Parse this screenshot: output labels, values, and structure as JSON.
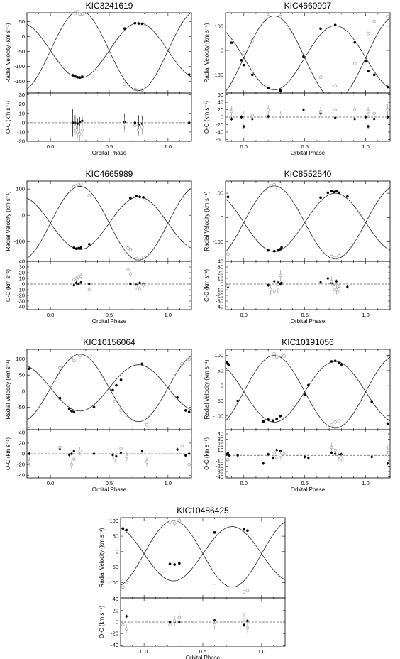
{
  "chart_data": [
    {
      "type": "scatter",
      "title": "KIC3241619",
      "xlabel": "Orbital Phase",
      "ylabel": "Radial Velocity (km s⁻¹)",
      "oc_ylabel": "O-C (km s⁻¹)",
      "xlim": [
        -0.2,
        1.2
      ],
      "xticks": [
        0.0,
        0.5,
        1.0
      ],
      "xtick_labels": [
        "0.0",
        "0.5",
        "1.0"
      ],
      "ylim": [
        -190,
        80
      ],
      "yticks": [
        -150,
        -100,
        -50,
        0,
        50
      ],
      "ytick_labels": [
        "-150",
        "-100",
        "-50",
        "0",
        "50"
      ],
      "oc_ylim": [
        -20,
        32
      ],
      "oc_yticks": [
        -20,
        -10,
        0,
        10,
        20,
        30
      ],
      "oc_ytick_labels": [
        "-20",
        "-10",
        "0",
        "10",
        "20",
        "30"
      ],
      "model": {
        "gamma": -47,
        "K1": 93,
        "K2": 135,
        "phase_offset": 0.0
      },
      "series": [
        {
          "x": [
            0.19,
            0.21,
            0.23,
            0.25,
            0.27,
            0.63,
            0.72,
            0.75,
            0.78,
            1.18
          ],
          "y": [
            -130,
            -133,
            -137,
            -138,
            -135,
            27,
            45,
            44,
            43,
            -128
          ],
          "oc": [
            0,
            0,
            -1,
            1,
            2,
            1,
            0,
            -2,
            -1,
            0
          ],
          "err": [
            15,
            8,
            6,
            5,
            5,
            8,
            7,
            10,
            8,
            15
          ]
        },
        {
          "x": [
            0.21,
            0.23,
            0.25,
            0.27,
            0.63,
            0.72,
            0.75,
            0.78
          ],
          "y": [
            78,
            84,
            76,
            76,
            -160,
            -178,
            -182,
            -180
          ],
          "oc": [
            -5,
            -10,
            -12,
            -8,
            -2,
            -3,
            -8,
            -5
          ],
          "err": [
            8,
            7,
            8,
            6,
            8,
            7,
            6,
            8
          ]
        }
      ]
    },
    {
      "type": "scatter",
      "title": "KIC4660997",
      "xlabel": "Orbital Phase",
      "ylabel": "Radial Velocity (km s⁻¹)",
      "oc_ylabel": "O-C (km s⁻¹)",
      "xlim": [
        -0.15,
        1.2
      ],
      "xticks": [
        0.0,
        0.5,
        1.0
      ],
      "xtick_labels": [
        "0.0",
        "0.5",
        "1.0"
      ],
      "ylim": [
        -175,
        155
      ],
      "yticks": [
        -100,
        0,
        100
      ],
      "ytick_labels": [
        "-100",
        "0",
        "100"
      ],
      "oc_ylim": [
        -65,
        65
      ],
      "oc_yticks": [
        -60,
        -40,
        -20,
        0,
        20,
        40,
        60
      ],
      "oc_ytick_labels": [
        "-60",
        "-40",
        "-20",
        "0",
        "20",
        "40",
        "60"
      ],
      "model": {
        "gamma": -30,
        "K1": 132,
        "K2": 172,
        "phase_offset": 0.0
      },
      "series": [
        {
          "x": [
            -0.1,
            -0.02,
            0.0,
            0.07,
            0.2,
            0.3,
            0.49,
            0.63,
            0.75,
            0.91,
            1.0,
            1.02,
            1.07,
            1.18
          ],
          "y": [
            32,
            -40,
            -60,
            -100,
            -155,
            -165,
            -25,
            90,
            105,
            33,
            -45,
            -85,
            -100,
            -150
          ],
          "oc": [
            -5,
            0,
            -25,
            -5,
            2,
            5,
            20,
            10,
            -2,
            -5,
            0,
            -25,
            -5,
            0
          ],
          "err": [
            5,
            5,
            5,
            5,
            5,
            5,
            4,
            5,
            5,
            5,
            5,
            5,
            5,
            5
          ]
        },
        {
          "x": [
            -0.1,
            0.0,
            0.07,
            0.2,
            0.3,
            0.63,
            0.75,
            0.91,
            1.02,
            1.07,
            1.18
          ],
          "y": [
            -115,
            -10,
            40,
            140,
            140,
            -110,
            -145,
            -55,
            70,
            120,
            140
          ],
          "oc": [
            15,
            5,
            5,
            20,
            5,
            15,
            20,
            20,
            15,
            10,
            20
          ],
          "err": [
            15,
            10,
            10,
            12,
            10,
            12,
            15,
            15,
            12,
            15,
            15
          ]
        }
      ]
    },
    {
      "type": "scatter",
      "title": "KIC4665989",
      "xlabel": "Orbital Phase",
      "ylabel": "Radial Velocity (km s⁻¹)",
      "oc_ylabel": "O-C (km s⁻¹)",
      "xlim": [
        -0.2,
        1.2
      ],
      "xticks": [
        0.0,
        0.5,
        1.0
      ],
      "xtick_labels": [
        "0.0",
        "0.5",
        "1.0"
      ],
      "ylim": [
        -175,
        130
      ],
      "yticks": [
        -100,
        0,
        100
      ],
      "ytick_labels": [
        "-100",
        "0",
        "100"
      ],
      "oc_ylim": [
        -45,
        40
      ],
      "oc_yticks": [
        -40,
        -30,
        -20,
        -10,
        0,
        10,
        20,
        30,
        40
      ],
      "oc_ytick_labels": [
        "-40",
        "-30",
        "-20",
        "-10",
        "0",
        "10",
        "20",
        "30",
        "40"
      ],
      "model": {
        "gamma": -30,
        "K1": 100,
        "K2": 140,
        "phase_offset": 0.0
      },
      "series": [
        {
          "x": [
            0.2,
            0.22,
            0.24,
            0.26,
            0.33,
            0.68,
            0.73,
            0.76,
            0.79
          ],
          "y": [
            -123,
            -127,
            -125,
            -123,
            -110,
            65,
            73,
            70,
            68
          ],
          "oc": [
            -2,
            2,
            0,
            3,
            0,
            0,
            -1,
            2,
            0
          ],
          "err": [
            3,
            3,
            3,
            3,
            3,
            3,
            3,
            3,
            3
          ]
        },
        {
          "x": [
            0.2,
            0.22,
            0.24,
            0.26,
            0.33,
            0.66,
            0.68,
            0.73,
            0.76,
            0.79
          ],
          "y": [
            108,
            112,
            118,
            118,
            75,
            -125,
            -130,
            -165,
            -168,
            -160
          ],
          "oc": [
            8,
            10,
            12,
            14,
            -10,
            25,
            18,
            -5,
            -8,
            -2
          ],
          "err": [
            5,
            5,
            5,
            5,
            6,
            6,
            6,
            6,
            6,
            6
          ]
        }
      ]
    },
    {
      "type": "scatter",
      "title": "KIC8552540",
      "xlabel": "Orbital Phase",
      "ylabel": "Radial Velocity (km s⁻¹)",
      "oc_ylabel": "O-C (km s⁻¹)",
      "xlim": [
        -0.15,
        1.2
      ],
      "xticks": [
        0.0,
        0.5,
        1.0
      ],
      "xtick_labels": [
        "0.0",
        "0.5",
        "1.0"
      ],
      "ylim": [
        -180,
        150
      ],
      "yticks": [
        -100,
        0,
        100
      ],
      "ytick_labels": [
        "-100",
        "0",
        "100"
      ],
      "oc_ylim": [
        -45,
        40
      ],
      "oc_yticks": [
        -40,
        -30,
        -20,
        -10,
        0,
        10,
        20,
        30,
        40
      ],
      "oc_ytick_labels": [
        "-40",
        "-30",
        "-20",
        "-10",
        "0",
        "10",
        "20",
        "30",
        "40"
      ],
      "model": {
        "gamma": -20,
        "K1": 120,
        "K2": 150,
        "phase_offset": 0.0
      },
      "series": [
        {
          "x": [
            -0.13,
            0.2,
            0.25,
            0.28,
            0.3,
            0.31,
            0.63,
            0.69,
            0.72,
            0.74,
            0.76,
            0.78,
            0.85
          ],
          "y": [
            85,
            -135,
            -138,
            -135,
            -130,
            -123,
            82,
            102,
            110,
            105,
            108,
            102,
            87
          ],
          "oc": [
            -5,
            -2,
            5,
            3,
            0,
            2,
            3,
            10,
            2,
            -3,
            5,
            -8,
            -5
          ],
          "err": [
            3,
            3,
            3,
            3,
            3,
            3,
            3,
            3,
            3,
            3,
            3,
            3,
            3
          ]
        },
        {
          "x": [
            -0.13,
            0.22,
            0.25,
            0.28,
            0.3,
            0.72,
            0.74,
            0.76,
            0.78
          ],
          "y": [
            -150,
            130,
            135,
            120,
            140,
            -160,
            -165,
            -165,
            -158
          ],
          "oc": [
            -3,
            -10,
            -12,
            -5,
            15,
            5,
            -5,
            -10,
            -8
          ],
          "err": [
            5,
            10,
            10,
            10,
            10,
            8,
            8,
            8,
            8
          ]
        }
      ]
    },
    {
      "type": "scatter",
      "title": "KIC10156064",
      "xlabel": "Orbital Phase",
      "ylabel": "Radial Velocity (km s⁻¹)",
      "oc_ylabel": "O-C (km s⁻¹)",
      "xlim": [
        -0.2,
        1.2
      ],
      "xticks": [
        0.0,
        0.5,
        1.0
      ],
      "xtick_labels": [
        "0.0",
        "0.5",
        "1.0"
      ],
      "ylim": [
        -120,
        130
      ],
      "yticks": [
        -50,
        0,
        50,
        100
      ],
      "ytick_labels": [
        "-50",
        "0",
        "50",
        "100"
      ],
      "oc_ylim": [
        -45,
        45
      ],
      "oc_yticks": [
        -40,
        -20,
        0,
        20,
        40
      ],
      "oc_ytick_labels": [
        "-40",
        "-20",
        "0",
        "20",
        "40"
      ],
      "model": {
        "gamma": 10,
        "K1": 72,
        "K2": 105,
        "phase_offset": 0.0
      },
      "series": [
        {
          "x": [
            -0.18,
            0.08,
            0.16,
            0.18,
            0.2,
            0.37,
            0.53,
            0.56,
            0.6,
            0.78,
            1.08,
            1.15,
            1.18
          ],
          "y": [
            70,
            -22,
            -55,
            -62,
            -65,
            -50,
            3,
            18,
            35,
            85,
            -20,
            -60,
            -65
          ],
          "oc": [
            0,
            10,
            -2,
            0,
            5,
            0,
            -2,
            -5,
            2,
            5,
            8,
            -3,
            0
          ],
          "err": [
            3,
            3,
            3,
            3,
            3,
            3,
            3,
            3,
            3,
            3,
            3,
            3,
            3
          ]
        },
        {
          "x": [
            -0.18,
            0.08,
            0.18,
            0.2,
            0.25,
            0.55,
            0.6,
            0.65,
            0.82,
            1.12,
            1.18
          ],
          "y": [
            -110,
            72,
            105,
            95,
            110,
            -32,
            -60,
            -75,
            -105,
            85,
            100
          ],
          "oc": [
            -15,
            12,
            -20,
            -10,
            5,
            -8,
            10,
            -5,
            -15,
            15,
            -20
          ],
          "err": [
            8,
            8,
            8,
            8,
            8,
            8,
            8,
            8,
            8,
            8,
            8
          ]
        }
      ]
    },
    {
      "type": "scatter",
      "title": "KIC10191056",
      "xlabel": "Orbital Phase",
      "ylabel": "Radial Velocity (km s⁻¹)",
      "oc_ylabel": "O-C (km s⁻¹)",
      "xlim": [
        -0.15,
        1.2
      ],
      "xticks": [
        0.0,
        0.5,
        1.0
      ],
      "xtick_labels": [
        "0.0",
        "0.5",
        "1.0"
      ],
      "ylim": [
        -145,
        120
      ],
      "yticks": [
        -100,
        -50,
        0,
        50,
        100
      ],
      "ytick_labels": [
        "-100",
        "-50",
        "0",
        "50",
        "100"
      ],
      "oc_ylim": [
        -42,
        48
      ],
      "oc_yticks": [
        -40,
        -30,
        -20,
        -10,
        0,
        10,
        20,
        30,
        40
      ],
      "oc_ytick_labels": [
        "-40",
        "-30",
        "-20",
        "-10",
        "0",
        "10",
        "20",
        "30",
        "40"
      ],
      "model": {
        "gamma": -20,
        "K1": 100,
        "K2": 120,
        "phase_offset": 0.0
      },
      "series": [
        {
          "x": [
            -0.14,
            -0.13,
            -0.12,
            -0.05,
            0.16,
            0.2,
            0.24,
            0.27,
            0.3,
            0.5,
            0.53,
            0.72,
            0.75,
            0.78,
            0.8,
            1.05,
            1.18
          ],
          "y": [
            78,
            72,
            68,
            -50,
            -118,
            -112,
            -115,
            -110,
            -100,
            -30,
            2,
            80,
            82,
            75,
            70,
            -52,
            -125
          ],
          "oc": [
            2,
            5,
            0,
            0,
            -15,
            2,
            -5,
            10,
            8,
            -3,
            -5,
            5,
            3,
            0,
            2,
            -3,
            -15
          ],
          "err": [
            3,
            3,
            3,
            3,
            3,
            3,
            3,
            3,
            3,
            3,
            3,
            3,
            3,
            3,
            3,
            3,
            3
          ]
        },
        {
          "x": [
            -0.13,
            0.25,
            0.27,
            0.3,
            0.33,
            0.72,
            0.75,
            0.78,
            0.8,
            1.18
          ],
          "y": [
            -110,
            105,
            95,
            100,
            98,
            -130,
            -120,
            -115,
            -110,
            100
          ],
          "oc": [
            -8,
            5,
            -5,
            0,
            3,
            15,
            10,
            -2,
            -5,
            10
          ],
          "err": [
            8,
            8,
            8,
            8,
            8,
            8,
            8,
            8,
            8,
            8
          ]
        }
      ]
    },
    {
      "type": "scatter",
      "title": "KIC10486425",
      "xlabel": "Orbital Phase",
      "ylabel": "Radial Velocity (km s⁻¹)",
      "oc_ylabel": "O-C (km s⁻¹)",
      "xlim": [
        -0.2,
        1.2
      ],
      "xticks": [
        0.0,
        0.5,
        1.0
      ],
      "xtick_labels": [
        "0.0",
        "0.5",
        "1.0"
      ],
      "ylim": [
        -150,
        110
      ],
      "yticks": [
        -100,
        -50,
        0,
        50,
        100
      ],
      "ytick_labels": [
        "-100",
        "-50",
        "0",
        "50",
        "100"
      ],
      "oc_ylim": [
        -42,
        42
      ],
      "oc_yticks": [
        -40,
        -20,
        0,
        20,
        40
      ],
      "oc_ytick_labels": [
        "-40",
        "-20",
        "0",
        "20",
        "40"
      ],
      "model": {
        "gamma": -7,
        "K1": 88,
        "K2": 108,
        "phase_offset": 0.0
      },
      "series": [
        {
          "x": [
            -0.18,
            -0.15,
            0.22,
            0.26,
            0.3,
            0.6,
            0.85,
            0.88
          ],
          "y": [
            75,
            70,
            -40,
            -42,
            -38,
            62,
            72,
            68
          ],
          "oc": [
            -5,
            10,
            0,
            0,
            0,
            3,
            -5,
            2
          ],
          "err": [
            3,
            3,
            3,
            3,
            3,
            3,
            3,
            3
          ]
        },
        {
          "x": [
            -0.18,
            -0.15,
            0.22,
            0.26,
            0.3,
            0.6,
            0.85,
            0.88
          ],
          "y": [
            -115,
            -100,
            95,
            92,
            100,
            -110,
            -130,
            -125
          ],
          "oc": [
            -5,
            -12,
            -5,
            2,
            8,
            -5,
            8,
            -10
          ],
          "err": [
            8,
            8,
            8,
            8,
            8,
            8,
            8,
            8
          ]
        }
      ]
    }
  ]
}
